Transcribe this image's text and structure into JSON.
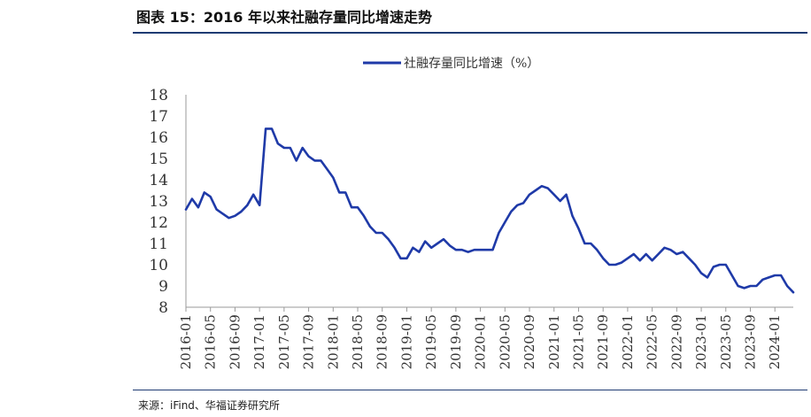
{
  "header": {
    "title": "图表 15：2016 年以来社融存量同比增速走势"
  },
  "footer": {
    "source": "来源：iFind、华福证券研究所"
  },
  "colors": {
    "series": "#1f3aa8",
    "accent": "#1f3b73"
  },
  "chart_data": {
    "type": "line",
    "legend": "top-center",
    "grid": false,
    "ylim": [
      8,
      18
    ],
    "yticks": [
      8,
      9,
      10,
      11,
      12,
      13,
      14,
      15,
      16,
      17,
      18
    ],
    "xlim": [
      "2016-01",
      "2024-04"
    ],
    "xticks": [
      "2016-01",
      "2016-05",
      "2016-09",
      "2017-01",
      "2017-05",
      "2017-09",
      "2018-01",
      "2018-05",
      "2018-09",
      "2019-01",
      "2019-05",
      "2019-09",
      "2020-01",
      "2020-05",
      "2020-09",
      "2021-01",
      "2021-05",
      "2021-09",
      "2022-01",
      "2022-05",
      "2022-09",
      "2023-01",
      "2023-05",
      "2023-09",
      "2024-01"
    ],
    "series": [
      {
        "name": "社融存量同比增速（%）",
        "x": [
          "2016-01",
          "2016-02",
          "2016-03",
          "2016-04",
          "2016-05",
          "2016-06",
          "2016-07",
          "2016-08",
          "2016-09",
          "2016-10",
          "2016-11",
          "2016-12",
          "2017-01",
          "2017-02",
          "2017-03",
          "2017-04",
          "2017-05",
          "2017-06",
          "2017-07",
          "2017-08",
          "2017-09",
          "2017-10",
          "2017-11",
          "2017-12",
          "2018-01",
          "2018-02",
          "2018-03",
          "2018-04",
          "2018-05",
          "2018-06",
          "2018-07",
          "2018-08",
          "2018-09",
          "2018-10",
          "2018-11",
          "2018-12",
          "2019-01",
          "2019-02",
          "2019-03",
          "2019-04",
          "2019-05",
          "2019-06",
          "2019-07",
          "2019-08",
          "2019-09",
          "2019-10",
          "2019-11",
          "2019-12",
          "2020-01",
          "2020-02",
          "2020-03",
          "2020-04",
          "2020-05",
          "2020-06",
          "2020-07",
          "2020-08",
          "2020-09",
          "2020-10",
          "2020-11",
          "2020-12",
          "2021-01",
          "2021-02",
          "2021-03",
          "2021-04",
          "2021-05",
          "2021-06",
          "2021-07",
          "2021-08",
          "2021-09",
          "2021-10",
          "2021-11",
          "2021-12",
          "2022-01",
          "2022-02",
          "2022-03",
          "2022-04",
          "2022-05",
          "2022-06",
          "2022-07",
          "2022-08",
          "2022-09",
          "2022-10",
          "2022-11",
          "2022-12",
          "2023-01",
          "2023-02",
          "2023-03",
          "2023-04",
          "2023-05",
          "2023-06",
          "2023-07",
          "2023-08",
          "2023-09",
          "2023-10",
          "2023-11",
          "2023-12",
          "2024-01",
          "2024-02",
          "2024-03",
          "2024-04"
        ],
        "values": [
          12.6,
          13.1,
          12.7,
          13.4,
          13.2,
          12.6,
          12.4,
          12.2,
          12.3,
          12.5,
          12.8,
          13.3,
          12.8,
          16.4,
          16.4,
          15.7,
          15.5,
          15.5,
          14.9,
          15.5,
          15.1,
          14.9,
          14.9,
          14.5,
          14.1,
          13.4,
          13.4,
          12.7,
          12.7,
          12.3,
          11.8,
          11.5,
          11.5,
          11.2,
          10.8,
          10.3,
          10.3,
          10.8,
          10.6,
          11.1,
          10.8,
          11.0,
          11.2,
          10.9,
          10.7,
          10.7,
          10.6,
          10.7,
          10.7,
          10.7,
          10.7,
          11.5,
          12.0,
          12.5,
          12.8,
          12.9,
          13.3,
          13.5,
          13.7,
          13.6,
          13.3,
          13.0,
          13.3,
          12.3,
          11.7,
          11.0,
          11.0,
          10.7,
          10.3,
          10.0,
          10.0,
          10.1,
          10.3,
          10.5,
          10.2,
          10.5,
          10.2,
          10.5,
          10.8,
          10.7,
          10.5,
          10.6,
          10.3,
          10.0,
          9.6,
          9.4,
          9.9,
          10.0,
          10.0,
          9.5,
          9.0,
          8.9,
          9.0,
          9.0,
          9.3,
          9.4,
          9.5,
          9.5,
          9.0,
          8.7
        ]
      }
    ]
  }
}
